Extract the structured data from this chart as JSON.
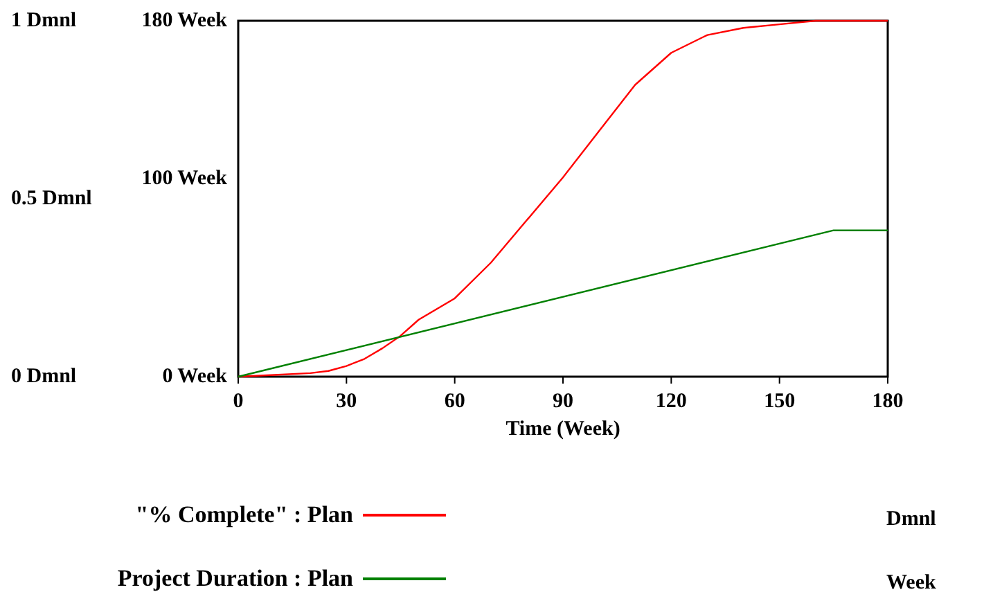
{
  "chart_data": {
    "type": "line",
    "xlabel": "Time (Week)",
    "annotations": [
      "Dmnl",
      "Week"
    ],
    "xlim": [
      0,
      180
    ],
    "xticks": [
      0,
      30,
      60,
      90,
      120,
      150,
      180
    ],
    "ylim": [
      0,
      1
    ],
    "yticks": [
      {
        "value": 0,
        "label": "0  Dmnl"
      },
      {
        "value": 0.5,
        "label": "0.5  Dmnl"
      },
      {
        "value": 1,
        "label": "1  Dmnl"
      }
    ],
    "y2lim": [
      0,
      180
    ],
    "y2ticks": [
      {
        "value": 0,
        "label": "0  Week"
      },
      {
        "value": 100,
        "label": "100  Week"
      },
      {
        "value": 180,
        "label": "180  Week"
      }
    ],
    "legend": "bottom",
    "marker": "none",
    "line_style": "solid",
    "grid": false,
    "series": [
      {
        "name": "\"% Complete\" : Plan",
        "color": "#ff0000",
        "x": [
          0,
          10,
          20,
          25,
          30,
          35,
          40,
          45,
          50,
          60,
          70,
          80,
          90,
          100,
          110,
          120,
          130,
          140,
          150,
          160,
          170,
          180
        ],
        "values": [
          0,
          0.005,
          0.01,
          0.016,
          0.03,
          0.05,
          0.08,
          0.115,
          0.16,
          0.22,
          0.32,
          0.44,
          0.56,
          0.69,
          0.82,
          0.91,
          0.96,
          0.98,
          0.99,
          1,
          1,
          1
        ]
      },
      {
        "name": "Project Duration : Plan",
        "color": "#008000",
        "axis": "y2",
        "x": [
          0,
          165,
          180
        ],
        "values": [
          0,
          74,
          74
        ]
      }
    ]
  }
}
